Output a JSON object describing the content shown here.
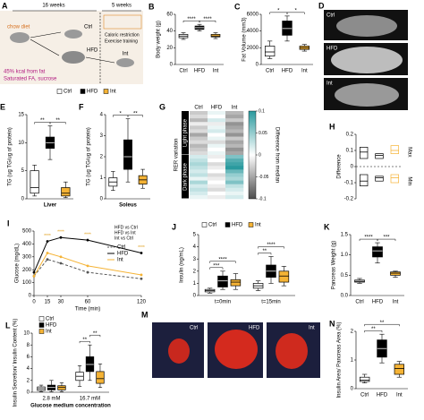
{
  "schematic": {
    "panel": "A",
    "period_1": "16 weeks",
    "period_2": "5 weeks",
    "diet_chow": "chow diet",
    "group_ctrl": "Ctrl",
    "group_hfd": "HFD",
    "group_int": "Int",
    "hfd_1": "45% kcal from fat",
    "hfd_2": "Saturated FA, sucrose",
    "int_1": "Caloric restriction",
    "int_2": "Exercise training"
  },
  "images": [
    {
      "panel": "D",
      "labels": [
        "Ctrl",
        "HFD",
        "Int"
      ]
    },
    {
      "panel": "M",
      "labels": [
        "Ctrl",
        "HFD",
        "Int"
      ]
    }
  ],
  "chart_data": [
    {
      "type": "box",
      "panel": "B",
      "ylabel": "Body weight (g)",
      "categories": [
        "Ctrl",
        "HFD",
        "Int"
      ],
      "colors": [
        "#ffffff",
        "#000000",
        "#f5b335"
      ],
      "median": [
        34,
        44,
        34
      ],
      "q1": [
        32,
        42,
        33
      ],
      "q3": [
        36,
        46,
        36
      ],
      "lo": [
        30,
        40,
        31
      ],
      "hi": [
        38,
        48,
        38
      ],
      "ylim": [
        0,
        60
      ],
      "yticks": [
        0,
        20,
        40,
        60
      ],
      "annotations": [
        "****",
        "****"
      ]
    },
    {
      "type": "box",
      "panel": "C",
      "ylabel": "Fat Volume (mm3)",
      "categories": [
        "Ctrl",
        "HFD",
        "Int"
      ],
      "colors": [
        "#ffffff",
        "#000000",
        "#f5b335"
      ],
      "median": [
        1500,
        4300,
        2000
      ],
      "q1": [
        1000,
        3500,
        1800
      ],
      "q3": [
        2200,
        5200,
        2200
      ],
      "lo": [
        700,
        2800,
        1600
      ],
      "hi": [
        2800,
        5800,
        2400
      ],
      "ylim": [
        0,
        6000
      ],
      "yticks": [
        0,
        2000,
        4000,
        6000
      ],
      "annotations": [
        "*",
        "*"
      ]
    },
    {
      "type": "box",
      "panel": "E",
      "ylabel": "TG (ug TG/ug of protein)",
      "xlabel": "Liver",
      "show_categories": false,
      "legend": true,
      "categories": [
        "Ctrl",
        "HFD",
        "Int"
      ],
      "colors": [
        "#ffffff",
        "#000000",
        "#f5b335"
      ],
      "median": [
        2,
        10,
        1
      ],
      "q1": [
        1,
        9,
        0.5
      ],
      "q3": [
        5,
        11,
        2
      ],
      "lo": [
        0.5,
        7,
        0.2
      ],
      "hi": [
        6,
        13,
        3
      ],
      "ylim": [
        0,
        15
      ],
      "yticks": [
        0,
        5,
        10,
        15
      ],
      "annotations": [
        "**",
        "**"
      ]
    },
    {
      "type": "box",
      "panel": "F",
      "ylabel": "TG (ug TG/ug of protein)",
      "xlabel": "Soleus",
      "show_categories": false,
      "categories": [
        "Ctrl",
        "HFD",
        "Int"
      ],
      "colors": [
        "#ffffff",
        "#000000",
        "#f5b335"
      ],
      "median": [
        0.8,
        2,
        0.9
      ],
      "q1": [
        0.6,
        1.4,
        0.7
      ],
      "q3": [
        1,
        2.8,
        1.1
      ],
      "lo": [
        0.4,
        0.8,
        0.5
      ],
      "hi": [
        1.3,
        3.8,
        1.4
      ],
      "ylim": [
        0,
        4
      ],
      "yticks": [
        0,
        1,
        2,
        3,
        4
      ],
      "annotations": [
        "*",
        "**"
      ]
    },
    {
      "type": "heatmap",
      "panel": "G",
      "ylabel": "RER variation",
      "columns": [
        "Ctrl",
        "HFD",
        "Int"
      ],
      "row_groups": [
        "Light phase",
        "Dark phase"
      ],
      "colorbar_label": "Difference from median",
      "zlim": [
        -0.1,
        0.1
      ],
      "zticks": [
        -0.1,
        -0.05,
        0,
        0.05,
        0.1
      ],
      "colors": {
        "low": "#4d4d4d",
        "mid": "#ffffff",
        "high": "#2a9a9e"
      },
      "values": [
        [
          -0.03,
          0.01,
          -0.04
        ],
        [
          -0.02,
          0,
          -0.05
        ],
        [
          -0.04,
          0.02,
          -0.03
        ],
        [
          -0.01,
          -0.01,
          -0.06
        ],
        [
          -0.03,
          0.01,
          -0.05
        ],
        [
          -0.02,
          0.02,
          -0.04
        ],
        [
          -0.05,
          0,
          -0.06
        ],
        [
          -0.03,
          0.01,
          -0.03
        ],
        [
          -0.02,
          -0.02,
          -0.05
        ],
        [
          -0.04,
          0.01,
          -0.04
        ],
        [
          -0.03,
          0,
          -0.06
        ],
        [
          -0.02,
          0.01,
          -0.05
        ],
        [
          0.02,
          -0.01,
          0.06
        ],
        [
          0.03,
          0,
          0.08
        ],
        [
          0.04,
          -0.02,
          0.09
        ],
        [
          0.03,
          -0.01,
          0.1
        ],
        [
          0.02,
          0,
          0.07
        ],
        [
          0.03,
          -0.02,
          0.05
        ],
        [
          0.01,
          -0.01,
          0.04
        ],
        [
          0.04,
          0,
          0.06
        ],
        [
          0.02,
          -0.01,
          0.03
        ],
        [
          0.03,
          -0.02,
          0.02
        ],
        [
          0.02,
          0,
          0.01
        ],
        [
          0.01,
          -0.01,
          0.02
        ]
      ]
    },
    {
      "type": "box",
      "panel": "H",
      "ylabel": "Difference",
      "box_style": "outline",
      "zero_line": true,
      "category_side": "right",
      "categories": [
        "Max",
        "Min"
      ],
      "series": [
        {
          "name": "Ctrl",
          "color": "#000000",
          "median": [
            0.09,
            -0.09
          ],
          "q1": [
            0.05,
            -0.12
          ],
          "q3": [
            0.12,
            -0.05
          ]
        },
        {
          "name": "HFD",
          "color": "#000000",
          "median": [
            0.07,
            -0.07
          ],
          "q1": [
            0.05,
            -0.09
          ],
          "q3": [
            0.08,
            -0.06
          ]
        },
        {
          "name": "Int",
          "color": "#f5b335",
          "median": [
            0.1,
            -0.07
          ],
          "q1": [
            0.08,
            -0.1
          ],
          "q3": [
            0.13,
            -0.05
          ]
        }
      ],
      "ylim": [
        -0.2,
        0.2
      ],
      "yticks": [
        -0.2,
        -0.1,
        0,
        0.1,
        0.2
      ]
    },
    {
      "type": "line",
      "panel": "I",
      "ylabel": "Glucose (mg/dL)",
      "xlabel": "Time (min)",
      "x": [
        0,
        15,
        30,
        60,
        120
      ],
      "xlim": [
        0,
        120
      ],
      "xticks": [
        0,
        15,
        30,
        60,
        120
      ],
      "ylim": [
        0,
        500
      ],
      "yticks": [
        0,
        100,
        200,
        300,
        400,
        500
      ],
      "series": [
        {
          "name": "Ctrl",
          "color": "#555555",
          "style": "dashed",
          "values": [
            150,
            280,
            250,
            180,
            130
          ]
        },
        {
          "name": "HFD",
          "color": "#000000",
          "style": "solid",
          "values": [
            180,
            420,
            450,
            430,
            330
          ]
        },
        {
          "name": "Int",
          "color": "#f5b335",
          "style": "solid",
          "values": [
            150,
            330,
            300,
            230,
            160
          ]
        }
      ],
      "comparisons": [
        "HFD vs Ctrl",
        "HFD vs Int",
        "Int vs Ctrl"
      ],
      "annotations": [
        "****",
        "****",
        "****",
        "****"
      ]
    },
    {
      "type": "box",
      "panel": "J",
      "ylabel": "Insulin (ng/mL)",
      "legend": true,
      "categories": [
        "t=0min",
        "t=15min"
      ],
      "series": [
        {
          "name": "Ctrl",
          "color": "#ffffff",
          "median": [
            0.4,
            0.8
          ],
          "q1": [
            0.3,
            0.6
          ],
          "q3": [
            0.5,
            1
          ],
          "lo": [
            0.2,
            0.4
          ],
          "hi": [
            0.6,
            1.2
          ]
        },
        {
          "name": "HFD",
          "color": "#000000",
          "median": [
            1.2,
            2
          ],
          "q1": [
            0.7,
            1.5
          ],
          "q3": [
            1.6,
            2.5
          ],
          "lo": [
            0.5,
            1
          ],
          "hi": [
            2,
            3.2
          ]
        },
        {
          "name": "Int",
          "color": "#f5b335",
          "median": [
            1.1,
            1.6
          ],
          "q1": [
            0.8,
            1.1
          ],
          "q3": [
            1.3,
            2
          ],
          "lo": [
            0.5,
            0.8
          ],
          "hi": [
            1.8,
            2.4
          ]
        }
      ],
      "ylim": [
        0,
        5
      ],
      "yticks": [
        0,
        1,
        2,
        3,
        4,
        5
      ],
      "annotations": [
        "****",
        "***",
        "****",
        "**"
      ]
    },
    {
      "type": "box",
      "panel": "K",
      "ylabel": "Pancreas Weight (g)",
      "categories": [
        "Ctrl",
        "HFD",
        "Int"
      ],
      "colors": [
        "#ffffff",
        "#000000",
        "#f5b335"
      ],
      "median": [
        0.35,
        1.1,
        0.55
      ],
      "q1": [
        0.33,
        0.95,
        0.5
      ],
      "q3": [
        0.38,
        1.2,
        0.58
      ],
      "lo": [
        0.3,
        0.8,
        0.45
      ],
      "hi": [
        0.42,
        1.3,
        0.6
      ],
      "ylim": [
        0,
        1.5
      ],
      "yticks": [
        {
          "value": 0,
          "label": "0.0"
        },
        0.5,
        {
          "value": 1,
          "label": "1.0"
        },
        1.5
      ],
      "annotations": [
        "****",
        "***"
      ]
    },
    {
      "type": "box",
      "panel": "L",
      "ylabel": "Insulin Secretion/ Insulin Content (%)",
      "xlabel": "Glucose medium concentration",
      "legend": true,
      "categories": [
        "2.8 mM",
        "16.7 mM"
      ],
      "series": [
        {
          "name": "Ctrl",
          "color": "#ffffff",
          "median": [
            0.6,
            2.7
          ],
          "q1": [
            0.3,
            2
          ],
          "q3": [
            0.9,
            3.4
          ],
          "lo": [
            0.1,
            1
          ],
          "hi": [
            1.2,
            4.5
          ]
        },
        {
          "name": "HFD",
          "color": "#000000",
          "median": [
            0.8,
            4.7
          ],
          "q1": [
            0.4,
            3.5
          ],
          "q3": [
            1.2,
            6
          ],
          "lo": [
            0.1,
            2
          ],
          "hi": [
            2,
            8
          ]
        },
        {
          "name": "Int",
          "color": "#f5b335",
          "median": [
            0.8,
            2.3
          ],
          "q1": [
            0.4,
            1.5
          ],
          "q3": [
            1.1,
            3.5
          ],
          "lo": [
            0.1,
            0.8
          ],
          "hi": [
            1.6,
            4.8
          ]
        }
      ],
      "ylim": [
        0,
        10
      ],
      "yticks": [
        0,
        2,
        4,
        6,
        8,
        10
      ],
      "annotations": [
        "**",
        "**"
      ]
    },
    {
      "type": "box",
      "panel": "N",
      "ylabel": "Insulin Area/ Pancreas Area (%)",
      "categories": [
        "Ctrl",
        "HFD",
        "Int"
      ],
      "colors": [
        "#ffffff",
        "#000000",
        "#f5b335"
      ],
      "median": [
        0.3,
        1.4,
        0.7
      ],
      "q1": [
        0.25,
        1.1,
        0.5
      ],
      "q3": [
        0.4,
        1.7,
        0.85
      ],
      "lo": [
        0.2,
        0.9,
        0.4
      ],
      "hi": [
        0.5,
        1.9,
        0.95
      ],
      "ylim": [
        0,
        2
      ],
      "yticks": [
        0,
        1,
        2
      ],
      "annotations": [
        "**",
        "**"
      ]
    }
  ]
}
